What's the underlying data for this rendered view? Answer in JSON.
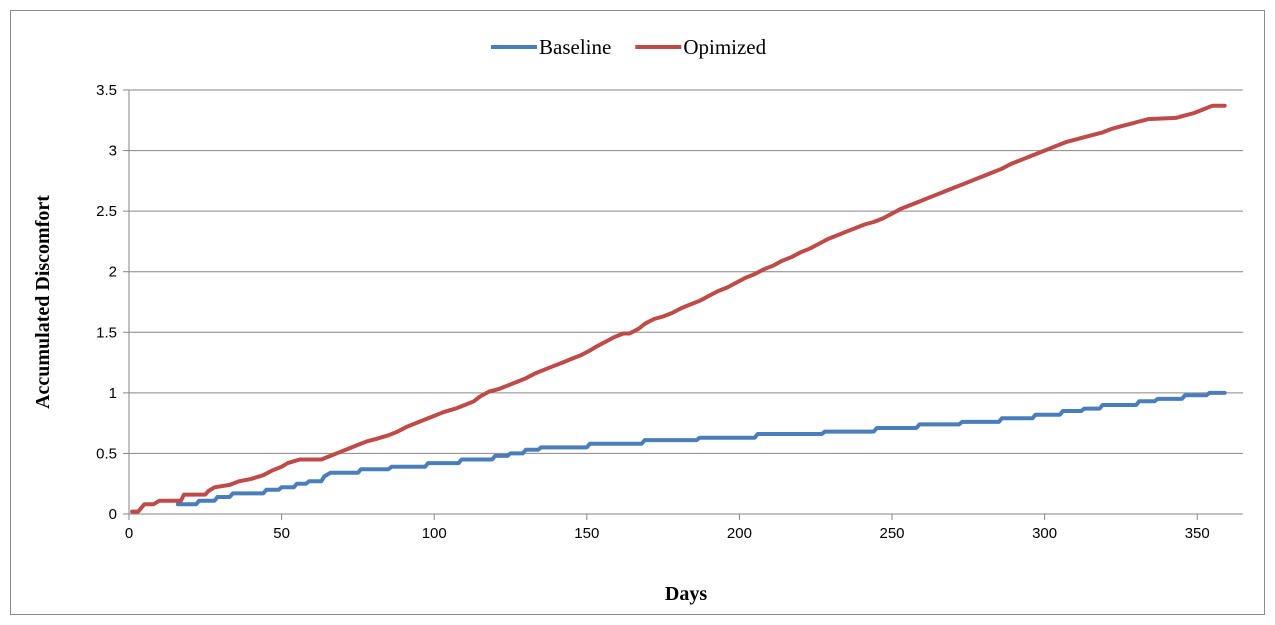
{
  "chart_data": {
    "type": "line",
    "title": "",
    "xlabel": "Days",
    "ylabel": "Accumulated Discomfort",
    "xlim": [
      0,
      365
    ],
    "ylim": [
      0,
      3.5
    ],
    "x_ticks": [
      "0",
      "50",
      "100",
      "150",
      "200",
      "250",
      "300",
      "350"
    ],
    "y_ticks": [
      "0",
      "0.5",
      "1",
      "1.5",
      "2",
      "2.5",
      "3",
      "3.5"
    ],
    "grid": "horizontal",
    "legend_position": "top-center",
    "series": [
      {
        "name": "Baseline",
        "color": "#4a7ebb",
        "points": [
          [
            16,
            0.08
          ],
          [
            22,
            0.08
          ],
          [
            23,
            0.11
          ],
          [
            28,
            0.11
          ],
          [
            29,
            0.14
          ],
          [
            33,
            0.14
          ],
          [
            34,
            0.17
          ],
          [
            44,
            0.17
          ],
          [
            45,
            0.2
          ],
          [
            49,
            0.2
          ],
          [
            50,
            0.22
          ],
          [
            54,
            0.22
          ],
          [
            55,
            0.25
          ],
          [
            58,
            0.25
          ],
          [
            59,
            0.27
          ],
          [
            63,
            0.27
          ],
          [
            64,
            0.31
          ],
          [
            66,
            0.34
          ],
          [
            75,
            0.34
          ],
          [
            76,
            0.37
          ],
          [
            85,
            0.37
          ],
          [
            86,
            0.39
          ],
          [
            97,
            0.39
          ],
          [
            98,
            0.42
          ],
          [
            108,
            0.42
          ],
          [
            109,
            0.45
          ],
          [
            119,
            0.45
          ],
          [
            120,
            0.48
          ],
          [
            124,
            0.48
          ],
          [
            125,
            0.5
          ],
          [
            129,
            0.5
          ],
          [
            130,
            0.53
          ],
          [
            134,
            0.53
          ],
          [
            135,
            0.55
          ],
          [
            150,
            0.55
          ],
          [
            151,
            0.58
          ],
          [
            168,
            0.58
          ],
          [
            169,
            0.61
          ],
          [
            186,
            0.61
          ],
          [
            187,
            0.63
          ],
          [
            205,
            0.63
          ],
          [
            206,
            0.66
          ],
          [
            227,
            0.66
          ],
          [
            228,
            0.68
          ],
          [
            244,
            0.68
          ],
          [
            245,
            0.71
          ],
          [
            258,
            0.71
          ],
          [
            259,
            0.74
          ],
          [
            272,
            0.74
          ],
          [
            273,
            0.76
          ],
          [
            285,
            0.76
          ],
          [
            286,
            0.79
          ],
          [
            296,
            0.79
          ],
          [
            297,
            0.82
          ],
          [
            305,
            0.82
          ],
          [
            306,
            0.85
          ],
          [
            312,
            0.85
          ],
          [
            313,
            0.87
          ],
          [
            318,
            0.87
          ],
          [
            319,
            0.9
          ],
          [
            330,
            0.9
          ],
          [
            331,
            0.93
          ],
          [
            336,
            0.93
          ],
          [
            337,
            0.95
          ],
          [
            345,
            0.95
          ],
          [
            346,
            0.98
          ],
          [
            353,
            0.98
          ],
          [
            354,
            1.0
          ],
          [
            359,
            1.0
          ]
        ]
      },
      {
        "name": "Opimized",
        "color": "#be4b48",
        "points": [
          [
            1,
            0.02
          ],
          [
            3,
            0.02
          ],
          [
            5,
            0.08
          ],
          [
            8,
            0.08
          ],
          [
            10,
            0.11
          ],
          [
            17,
            0.11
          ],
          [
            18,
            0.16
          ],
          [
            25,
            0.16
          ],
          [
            26,
            0.19
          ],
          [
            28,
            0.22
          ],
          [
            33,
            0.24
          ],
          [
            36,
            0.27
          ],
          [
            40,
            0.29
          ],
          [
            44,
            0.32
          ],
          [
            47,
            0.36
          ],
          [
            50,
            0.39
          ],
          [
            52,
            0.42
          ],
          [
            56,
            0.45
          ],
          [
            63,
            0.45
          ],
          [
            66,
            0.48
          ],
          [
            69,
            0.51
          ],
          [
            72,
            0.54
          ],
          [
            75,
            0.57
          ],
          [
            78,
            0.6
          ],
          [
            81,
            0.62
          ],
          [
            85,
            0.65
          ],
          [
            88,
            0.68
          ],
          [
            91,
            0.72
          ],
          [
            94,
            0.75
          ],
          [
            97,
            0.78
          ],
          [
            100,
            0.81
          ],
          [
            103,
            0.84
          ],
          [
            107,
            0.87
          ],
          [
            110,
            0.9
          ],
          [
            113,
            0.93
          ],
          [
            115,
            0.97
          ],
          [
            118,
            1.01
          ],
          [
            121,
            1.03
          ],
          [
            124,
            1.06
          ],
          [
            127,
            1.09
          ],
          [
            130,
            1.12
          ],
          [
            133,
            1.16
          ],
          [
            136,
            1.19
          ],
          [
            139,
            1.22
          ],
          [
            142,
            1.25
          ],
          [
            145,
            1.28
          ],
          [
            148,
            1.31
          ],
          [
            151,
            1.35
          ],
          [
            153,
            1.38
          ],
          [
            156,
            1.42
          ],
          [
            159,
            1.46
          ],
          [
            162,
            1.49
          ],
          [
            164,
            1.49
          ],
          [
            167,
            1.53
          ],
          [
            169,
            1.57
          ],
          [
            172,
            1.61
          ],
          [
            175,
            1.63
          ],
          [
            178,
            1.66
          ],
          [
            181,
            1.7
          ],
          [
            184,
            1.73
          ],
          [
            187,
            1.76
          ],
          [
            190,
            1.8
          ],
          [
            193,
            1.84
          ],
          [
            196,
            1.87
          ],
          [
            199,
            1.91
          ],
          [
            202,
            1.95
          ],
          [
            205,
            1.98
          ],
          [
            208,
            2.02
          ],
          [
            211,
            2.05
          ],
          [
            214,
            2.09
          ],
          [
            217,
            2.12
          ],
          [
            220,
            2.16
          ],
          [
            223,
            2.19
          ],
          [
            226,
            2.23
          ],
          [
            229,
            2.27
          ],
          [
            232,
            2.3
          ],
          [
            235,
            2.33
          ],
          [
            238,
            2.36
          ],
          [
            241,
            2.39
          ],
          [
            244,
            2.41
          ],
          [
            247,
            2.44
          ],
          [
            250,
            2.48
          ],
          [
            253,
            2.52
          ],
          [
            256,
            2.55
          ],
          [
            259,
            2.58
          ],
          [
            262,
            2.61
          ],
          [
            265,
            2.64
          ],
          [
            268,
            2.67
          ],
          [
            271,
            2.7
          ],
          [
            274,
            2.73
          ],
          [
            277,
            2.76
          ],
          [
            280,
            2.79
          ],
          [
            283,
            2.82
          ],
          [
            286,
            2.85
          ],
          [
            289,
            2.89
          ],
          [
            292,
            2.92
          ],
          [
            295,
            2.95
          ],
          [
            298,
            2.98
          ],
          [
            301,
            3.01
          ],
          [
            304,
            3.04
          ],
          [
            307,
            3.07
          ],
          [
            310,
            3.09
          ],
          [
            313,
            3.11
          ],
          [
            316,
            3.13
          ],
          [
            319,
            3.15
          ],
          [
            322,
            3.18
          ],
          [
            325,
            3.2
          ],
          [
            328,
            3.22
          ],
          [
            331,
            3.24
          ],
          [
            334,
            3.26
          ],
          [
            343,
            3.27
          ],
          [
            346,
            3.29
          ],
          [
            349,
            3.31
          ],
          [
            352,
            3.34
          ],
          [
            355,
            3.37
          ],
          [
            359,
            3.37
          ]
        ]
      }
    ]
  }
}
